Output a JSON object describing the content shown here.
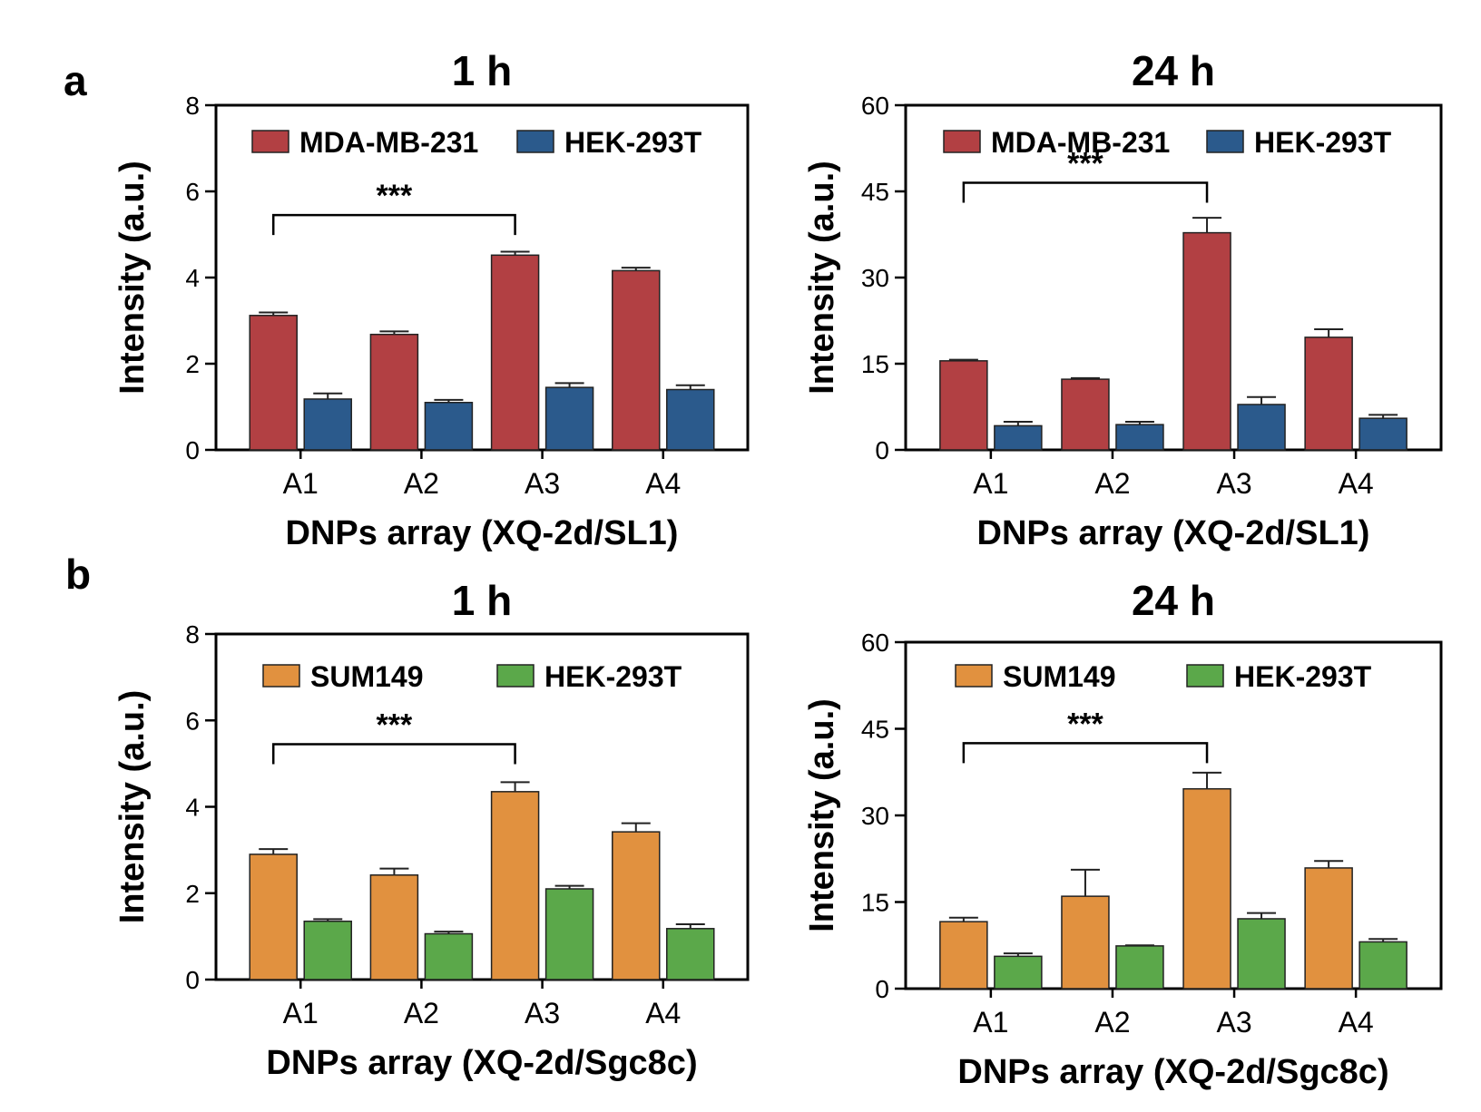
{
  "panel_labels": {
    "a": "a",
    "b": "b"
  },
  "chart_data": [
    {
      "type": "bar",
      "panel": "a",
      "title": "1 h",
      "xlabel": "DNPs array (XQ-2d/SL1)",
      "ylabel": "Intensity (a.u.)",
      "categories": [
        "A1",
        "A2",
        "A3",
        "A4"
      ],
      "ylim": [
        0,
        8
      ],
      "yticks": [
        0,
        2,
        4,
        6,
        8
      ],
      "grid": false,
      "legend_position": "top",
      "series": [
        {
          "name": "MDA-MB-231",
          "color": "#b24043",
          "values": [
            3.12,
            2.68,
            4.52,
            4.16
          ],
          "errors": [
            0.07,
            0.07,
            0.08,
            0.07
          ]
        },
        {
          "name": "HEK-293T",
          "color": "#2b5a8c",
          "values": [
            1.18,
            1.1,
            1.45,
            1.4
          ],
          "errors": [
            0.13,
            0.06,
            0.1,
            0.1
          ]
        }
      ],
      "significance": {
        "from": "A1",
        "to": "A3",
        "label": "***",
        "y": 5.45
      }
    },
    {
      "type": "bar",
      "panel": "a",
      "title": "24 h",
      "xlabel": "DNPs array (XQ-2d/SL1)",
      "ylabel": "Intensity (a.u.)",
      "categories": [
        "A1",
        "A2",
        "A3",
        "A4"
      ],
      "ylim": [
        0,
        60
      ],
      "yticks": [
        0,
        15,
        30,
        45,
        60
      ],
      "grid": false,
      "legend_position": "top",
      "series": [
        {
          "name": "MDA-MB-231",
          "color": "#b24043",
          "values": [
            15.5,
            12.3,
            37.8,
            19.6
          ],
          "errors": [
            0.2,
            0.2,
            2.6,
            1.4
          ]
        },
        {
          "name": "HEK-293T",
          "color": "#2b5a8c",
          "values": [
            4.2,
            4.4,
            7.9,
            5.5
          ],
          "errors": [
            0.7,
            0.5,
            1.3,
            0.6
          ]
        }
      ],
      "significance": {
        "from": "A1",
        "to": "A3",
        "label": "***",
        "y": 46.5
      }
    },
    {
      "type": "bar",
      "panel": "b",
      "title": "1 h",
      "xlabel": "DNPs array (XQ-2d/Sgc8c)",
      "ylabel": "Intensity (a.u.)",
      "categories": [
        "A1",
        "A2",
        "A3",
        "A4"
      ],
      "ylim": [
        0,
        8
      ],
      "yticks": [
        0,
        2,
        4,
        6,
        8
      ],
      "grid": false,
      "legend_position": "top",
      "series": [
        {
          "name": "SUM149",
          "color": "#e1913f",
          "values": [
            2.9,
            2.42,
            4.35,
            3.42
          ],
          "errors": [
            0.12,
            0.15,
            0.22,
            0.2
          ]
        },
        {
          "name": "HEK-293T",
          "color": "#5ba84a",
          "values": [
            1.35,
            1.06,
            2.1,
            1.18
          ],
          "errors": [
            0.05,
            0.05,
            0.07,
            0.1
          ]
        }
      ],
      "significance": {
        "from": "A1",
        "to": "A3",
        "label": "***",
        "y": 5.45
      }
    },
    {
      "type": "bar",
      "panel": "b",
      "title": "24 h",
      "xlabel": "DNPs array (XQ-2d/Sgc8c)",
      "ylabel": "Intensity (a.u.)",
      "categories": [
        "A1",
        "A2",
        "A3",
        "A4"
      ],
      "ylim": [
        0,
        60
      ],
      "yticks": [
        0,
        15,
        30,
        45,
        60
      ],
      "grid": false,
      "legend_position": "top",
      "series": [
        {
          "name": "SUM149",
          "color": "#e1913f",
          "values": [
            11.6,
            16,
            34.6,
            20.9
          ],
          "errors": [
            0.7,
            4.6,
            2.8,
            1.2
          ]
        },
        {
          "name": "HEK-293T",
          "color": "#5ba84a",
          "values": [
            5.6,
            7.4,
            12.1,
            8.1
          ],
          "errors": [
            0.5,
            0.1,
            1.0,
            0.5
          ]
        }
      ],
      "significance": {
        "from": "A1",
        "to": "A3",
        "label": "***",
        "y": 42.5
      }
    }
  ]
}
